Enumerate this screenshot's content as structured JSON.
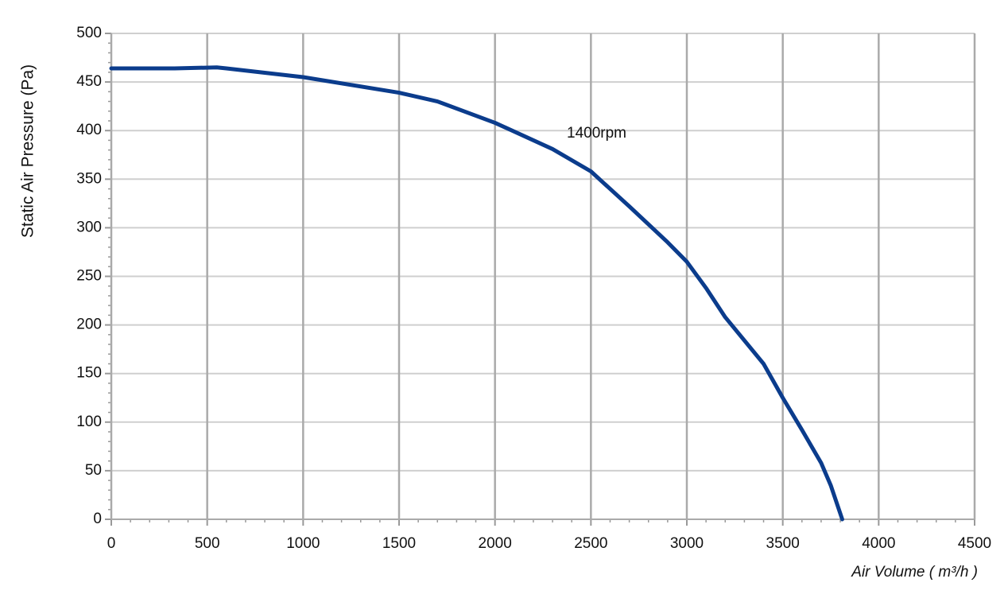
{
  "chart_data": {
    "type": "line",
    "x_label": "Air Volume ( m³/h )",
    "y_label": "Static Air Pressure  (Pa)",
    "annotation": "1400rpm",
    "xlim": [
      0,
      4500
    ],
    "xticks": [
      0,
      500,
      1000,
      1500,
      2000,
      2500,
      3000,
      3500,
      4000,
      4500
    ],
    "ylim": [
      0,
      500
    ],
    "yticks": [
      0,
      50,
      100,
      150,
      200,
      250,
      300,
      350,
      400,
      450,
      500
    ],
    "grid": true,
    "series": [
      {
        "name": "1400rpm",
        "color": "#0b3c8c",
        "x": [
          0,
          330,
          550,
          600,
          1000,
          1500,
          1700,
          2000,
          2300,
          2500,
          2700,
          2900,
          3000,
          3100,
          3200,
          3400,
          3500,
          3600,
          3700,
          3750,
          3810
        ],
        "values": [
          464,
          464,
          465,
          464,
          455,
          439,
          430,
          408,
          381,
          358,
          322,
          285,
          265,
          238,
          208,
          160,
          125,
          92,
          58,
          35,
          0
        ]
      }
    ]
  }
}
